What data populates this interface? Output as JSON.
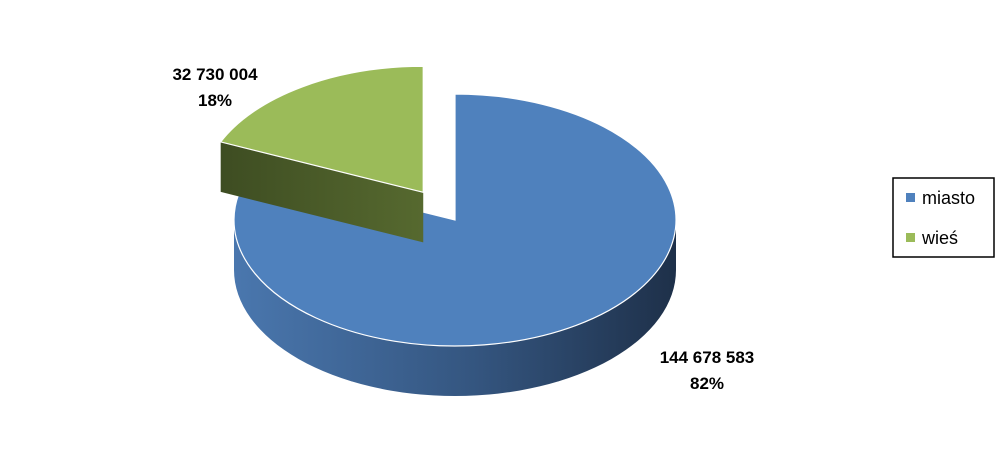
{
  "chart_data": {
    "type": "pie",
    "title": "",
    "three_d": true,
    "exploded": [
      "wieś"
    ],
    "legend_position": "right",
    "slices": [
      {
        "name": "miasto",
        "value": 144678583,
        "value_label": "144 678 583",
        "percent_label": "82%",
        "color": "#4F81BD"
      },
      {
        "name": "wieś",
        "value": 32730004,
        "value_label": "32 730 004",
        "percent_label": "18%",
        "color": "#9BBB59"
      }
    ]
  }
}
